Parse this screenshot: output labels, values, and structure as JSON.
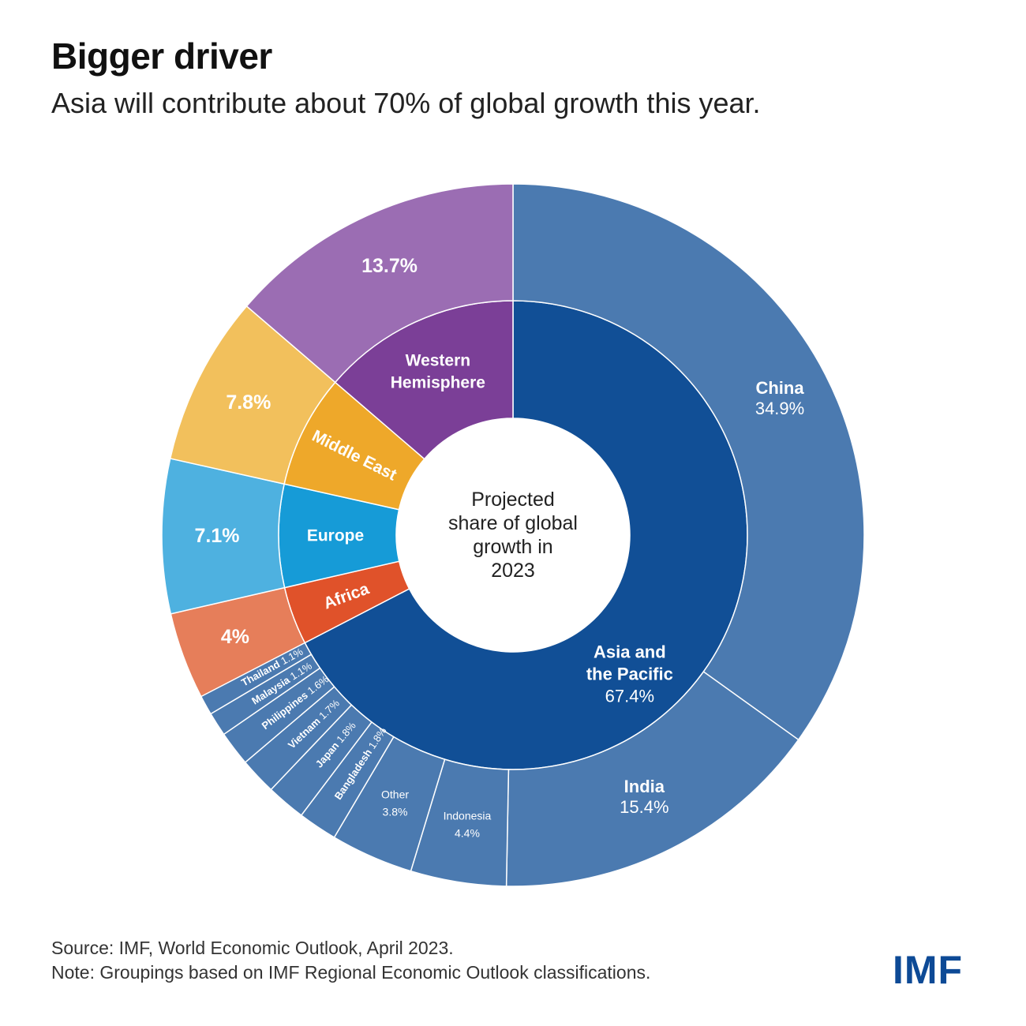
{
  "header": {
    "title": "Bigger driver",
    "subtitle": "Asia will contribute about 70% of global growth this year."
  },
  "chart_data": {
    "type": "sunburst",
    "center_label": [
      "Projected",
      "share of global",
      "growth in",
      "2023"
    ],
    "colors": {
      "asia_inner": "#114f96",
      "asia_outer": "#4b7ab0",
      "africa_inner": "#e0522a",
      "africa_outer": "#e67e5a",
      "europe_inner": "#169bd7",
      "europe_outer": "#4eb1e0",
      "middle_east_inner": "#eea82a",
      "middle_east_outer": "#f2c05c",
      "western_inner": "#7b3f97",
      "western_outer": "#9b6db3"
    },
    "regions": [
      {
        "name": "Asia and the Pacific",
        "label_lines": [
          "Asia and",
          "the Pacific"
        ],
        "value": 67.4,
        "value_label": "67.4%",
        "inner_color": "#114f96",
        "children": [
          {
            "name": "China",
            "value": 34.9,
            "value_label": "34.9%"
          },
          {
            "name": "India",
            "value": 15.4,
            "value_label": "15.4%"
          },
          {
            "name": "Indonesia",
            "value": 4.4,
            "value_label": "4.4%"
          },
          {
            "name": "Other",
            "value": 3.8,
            "value_label": "3.8%"
          },
          {
            "name": "Bangladesh",
            "value": 1.8,
            "value_label": "1.8%"
          },
          {
            "name": "Japan",
            "value": 1.8,
            "value_label": "1.8%"
          },
          {
            "name": "Vietnam",
            "value": 1.7,
            "value_label": "1.7%"
          },
          {
            "name": "Philippines",
            "value": 1.6,
            "value_label": "1.6%"
          },
          {
            "name": "Malaysia",
            "value": 1.1,
            "value_label": "1.1%"
          },
          {
            "name": "Thailand",
            "value": 1.1,
            "value_label": "1.1%"
          }
        ]
      },
      {
        "name": "Western Hemisphere",
        "label_lines": [
          "Western",
          "Hemisphere"
        ],
        "value": 13.7,
        "value_label": "13.7%",
        "inner_color": "#7b3f97",
        "outer_color": "#9b6db3"
      },
      {
        "name": "Middle East",
        "label_lines": [
          "Middle East"
        ],
        "value": 7.8,
        "value_label": "7.8%",
        "inner_color": "#eea82a",
        "outer_color": "#f2c05c"
      },
      {
        "name": "Europe",
        "label_lines": [
          "Europe"
        ],
        "value": 7.1,
        "value_label": "7.1%",
        "inner_color": "#169bd7",
        "outer_color": "#4eb1e0"
      },
      {
        "name": "Africa",
        "label_lines": [
          "Africa"
        ],
        "value": 4.0,
        "value_label": "4%",
        "inner_color": "#e0522a",
        "outer_color": "#e67e5a"
      }
    ]
  },
  "footer": {
    "source": "Source: IMF, World Economic Outlook, April 2023.",
    "note": "Note: Groupings based on IMF Regional Economic Outlook classifications."
  },
  "logo": "IMF"
}
